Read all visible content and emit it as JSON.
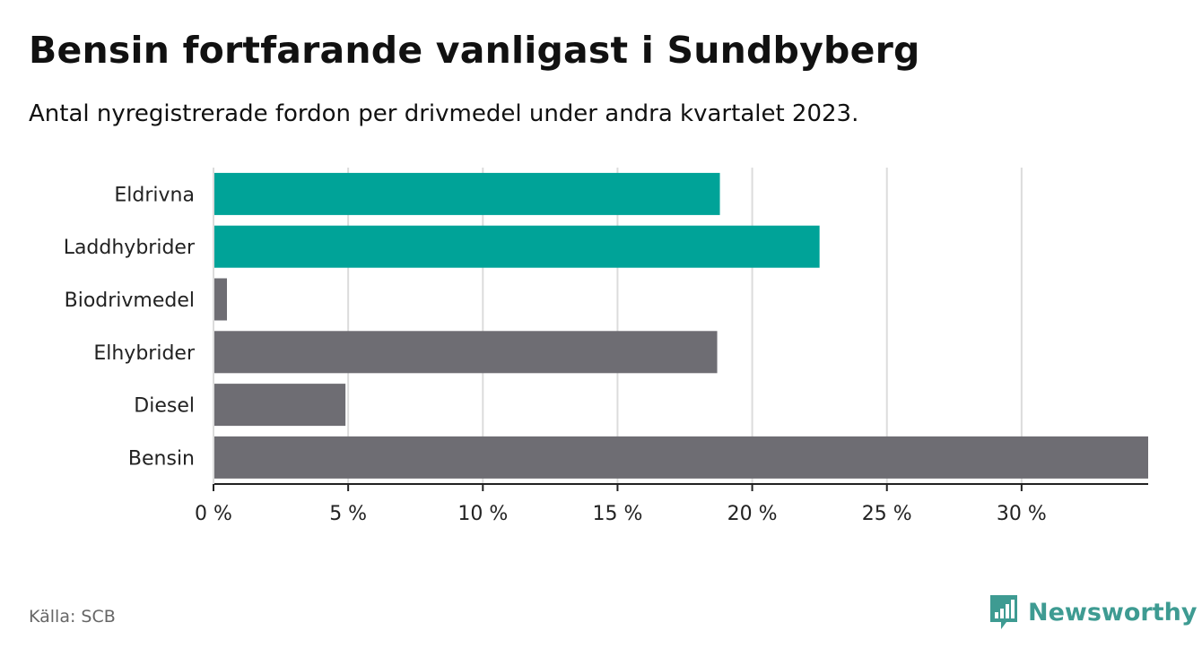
{
  "header": {
    "title": "Bensin fortfarande vanligast i Sundbyberg",
    "subtitle": "Antal nyregistrerade fordon per drivmedel under andra kvartalet 2023."
  },
  "footer": {
    "source": "Källa: SCB",
    "brand_name": "Newsworthy",
    "brand_icon": "bar-chart-speech-bubble-icon"
  },
  "colors": {
    "highlight": "#00a398",
    "default": "#6e6d73",
    "grid": "#dcdcdc",
    "axis": "#222222",
    "brand": "#3e9b92"
  },
  "chart_data": {
    "type": "bar",
    "orientation": "horizontal",
    "title": "Bensin fortfarande vanligast i Sundbyberg",
    "xlabel": "",
    "ylabel": "",
    "xlim": [
      0,
      34.7
    ],
    "grid": true,
    "tick_values": [
      0,
      5,
      10,
      15,
      20,
      25,
      30
    ],
    "tick_labels": [
      "0 %",
      "5 %",
      "10 %",
      "15 %",
      "20 %",
      "25 %",
      "30 %"
    ],
    "categories": [
      "Eldrivna",
      "Laddhybrider",
      "Biodrivmedel",
      "Elhybrider",
      "Diesel",
      "Bensin"
    ],
    "values": [
      18.8,
      22.5,
      0.5,
      18.7,
      4.9,
      34.7
    ],
    "highlight": [
      true,
      true,
      false,
      false,
      false,
      false
    ]
  }
}
